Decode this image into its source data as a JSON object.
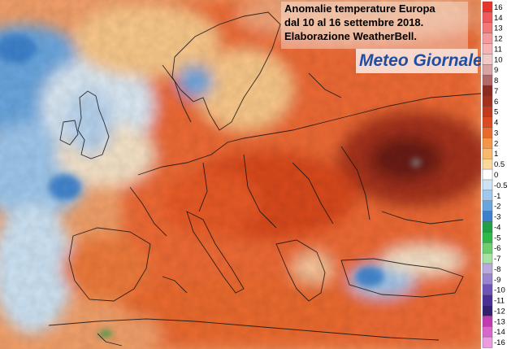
{
  "title_lines": [
    "Anomalie temperature Europa",
    "dal 10 al 16 settembre 2018.",
    "Elaborazione WeatherBell."
  ],
  "logo": {
    "word1": "Meteo",
    "word2": "Giornale",
    "color": "#1f4ea3"
  },
  "legend": {
    "labels": [
      "16",
      "14",
      "13",
      "12",
      "11",
      "10",
      "9",
      "8",
      "7",
      "6",
      "5",
      "4",
      "3",
      "2",
      "1",
      "0.5",
      "0",
      "-0.5",
      "-1",
      "-2",
      "-3",
      "-4",
      "-5",
      "-6",
      "-7",
      "-8",
      "-9",
      "-10",
      "-11",
      "-12",
      "-13",
      "-14",
      "-16"
    ],
    "colors": [
      "#e8332a",
      "#ef5a5a",
      "#f27878",
      "#f59a9a",
      "#f7b3b3",
      "#f0c9c9",
      "#d9a3a3",
      "#b56666",
      "#8b2a1f",
      "#a5301c",
      "#c23a1c",
      "#db4a20",
      "#ea6a2a",
      "#f59445",
      "#f9b86a",
      "#fbd79a",
      "#ffffff",
      "#cde3f4",
      "#9fc8ec",
      "#6aa6de",
      "#3b80cc",
      "#1fa046",
      "#2eb84a",
      "#6dcf6d",
      "#a6e3a0",
      "#b9a9dd",
      "#9b84cf",
      "#6f53b8",
      "#4b2f96",
      "#33206e",
      "#c23ab0",
      "#d967c9",
      "#ee9ae0"
    ]
  }
}
